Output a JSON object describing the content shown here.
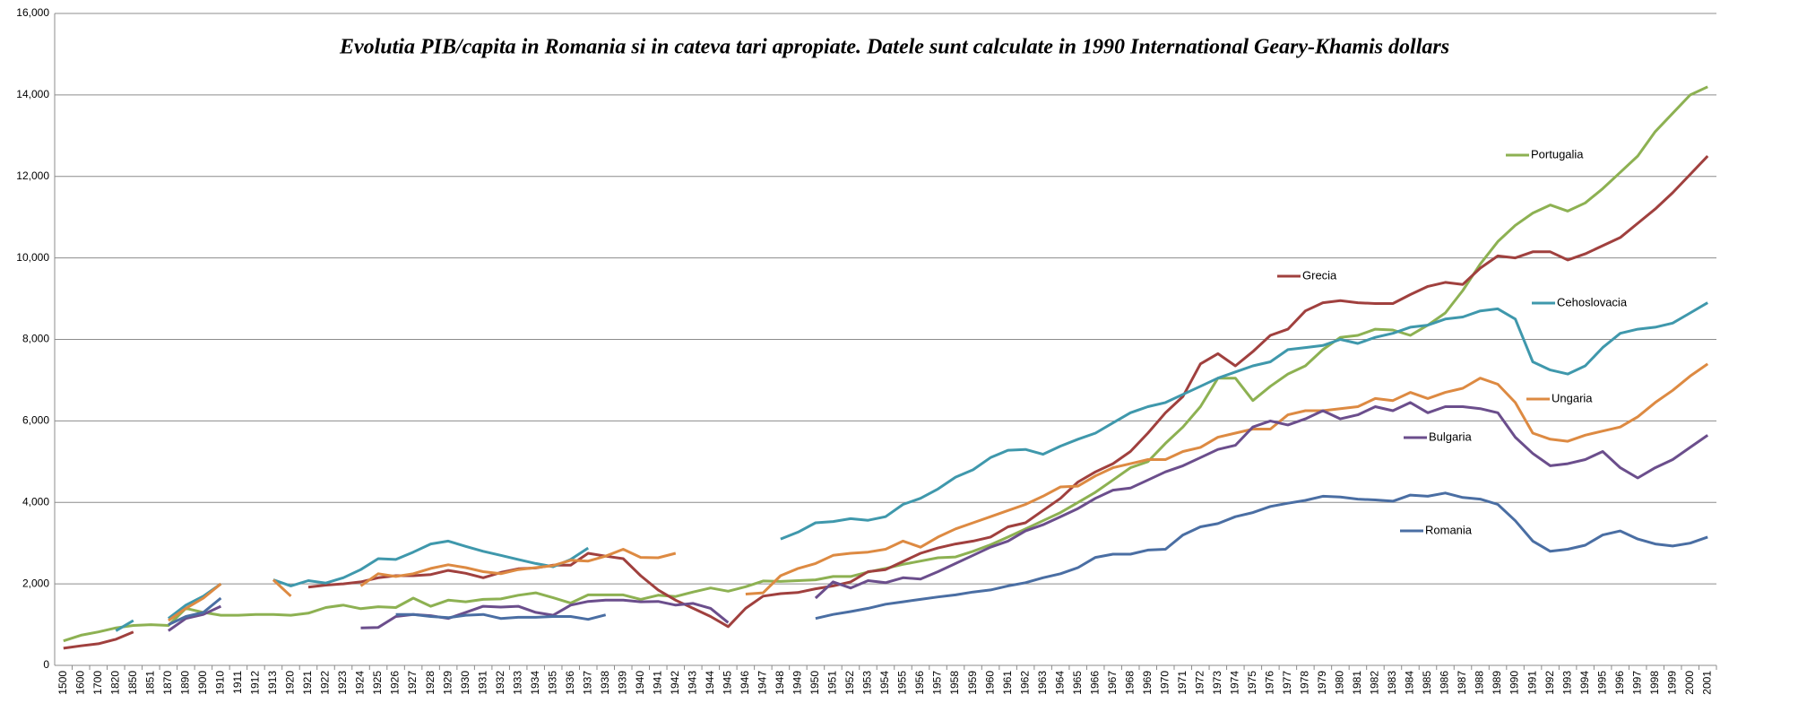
{
  "chart_data": {
    "type": "line",
    "title": "Evolutia PIB/capita in Romania si in cateva tari apropiate. Datele sunt calculate in 1990 International Geary-Khamis dollars",
    "categories": [
      "1500",
      "1600",
      "1700",
      "1820",
      "1850",
      "1851",
      "1870",
      "1890",
      "1900",
      "1910",
      "1911",
      "1912",
      "1913",
      "1920",
      "1921",
      "1922",
      "1923",
      "1924",
      "1925",
      "1926",
      "1927",
      "1928",
      "1929",
      "1930",
      "1931",
      "1932",
      "1933",
      "1934",
      "1935",
      "1936",
      "1937",
      "1938",
      "1939",
      "1940",
      "1941",
      "1942",
      "1943",
      "1944",
      "1945",
      "1946",
      "1947",
      "1948",
      "1949",
      "1950",
      "1951",
      "1952",
      "1953",
      "1954",
      "1955",
      "1956",
      "1957",
      "1958",
      "1959",
      "1960",
      "1961",
      "1962",
      "1963",
      "1964",
      "1965",
      "1966",
      "1967",
      "1968",
      "1969",
      "1970",
      "1971",
      "1972",
      "1973",
      "1974",
      "1975",
      "1976",
      "1977",
      "1978",
      "1979",
      "1980",
      "1981",
      "1982",
      "1983",
      "1984",
      "1985",
      "1986",
      "1987",
      "1988",
      "1989",
      "1990",
      "1991",
      "1992",
      "1993",
      "1994",
      "1995",
      "1996",
      "1997",
      "1998",
      "1999",
      "2000",
      "2001"
    ],
    "ylim": [
      0,
      16000
    ],
    "yticks": [
      0,
      {
        "value": 2000,
        "label": "2,000"
      },
      {
        "value": 4000,
        "label": "4,000"
      },
      {
        "value": 6000,
        "label": "6,000"
      },
      {
        "value": 8000,
        "label": "8,000"
      },
      {
        "value": 10000,
        "label": "10,000"
      },
      {
        "value": 12000,
        "label": "12,000"
      },
      {
        "value": 14000,
        "label": "14,000"
      },
      {
        "value": 16000,
        "label": "16,000"
      }
    ],
    "grid": true,
    "series": [
      {
        "name": "Portugalia",
        "color": "#8db152",
        "values": [
          600,
          740,
          820,
          920,
          980,
          1000,
          980,
          1400,
          1300,
          1230,
          1230,
          1250,
          1250,
          1230,
          1280,
          1420,
          1480,
          1390,
          1440,
          1420,
          1650,
          1450,
          1600,
          1560,
          1620,
          1630,
          1720,
          1780,
          1660,
          1530,
          1730,
          1730,
          1730,
          1620,
          1720,
          1690,
          1800,
          1900,
          1820,
          1930,
          2070,
          2060,
          2080,
          2100,
          2180,
          2180,
          2290,
          2380,
          2480,
          2560,
          2640,
          2660,
          2800,
          2960,
          3150,
          3350,
          3550,
          3750,
          4000,
          4250,
          4550,
          4850,
          5000,
          5450,
          5850,
          6350,
          7050,
          7050,
          6500,
          6850,
          7150,
          7350,
          7750,
          8050,
          8100,
          8250,
          8230,
          8100,
          8350,
          8650,
          9200,
          9850,
          10400,
          10800,
          11100,
          11300,
          11150,
          11350,
          11700,
          12100,
          12500,
          13100,
          13550,
          14000,
          14200
        ]
      },
      {
        "name": "Grecia",
        "color": "#a0403e",
        "values": [
          420,
          480,
          530,
          640,
          820,
          null,
          null,
          null,
          null,
          null,
          null,
          null,
          null,
          null,
          1920,
          1970,
          2000,
          2050,
          2150,
          2200,
          2200,
          2230,
          2330,
          2260,
          2150,
          2280,
          2370,
          2390,
          2460,
          2460,
          2750,
          2680,
          2620,
          2200,
          1850,
          1600,
          1400,
          1200,
          950,
          1400,
          1700,
          1760,
          1790,
          1880,
          1950,
          2050,
          2300,
          2350,
          2550,
          2750,
          2880,
          2980,
          3050,
          3150,
          3400,
          3500,
          3800,
          4100,
          4500,
          4750,
          4950,
          5250,
          5700,
          6200,
          6600,
          7400,
          7650,
          7350,
          7700,
          8100,
          8250,
          8700,
          8900,
          8950,
          8900,
          8880,
          8880,
          9100,
          9300,
          9400,
          9350,
          9750,
          10050,
          10000,
          10150,
          10150,
          9950,
          10100,
          10300,
          10500,
          10850,
          11200,
          11600,
          12050,
          12500
        ]
      },
      {
        "name": "Cehoslovacia",
        "color": "#3f98ac",
        "values": [
          null,
          null,
          null,
          850,
          1100,
          null,
          1150,
          1480,
          1700,
          2000,
          null,
          null,
          2100,
          1950,
          2080,
          2020,
          2150,
          2350,
          2620,
          2600,
          2780,
          2980,
          3050,
          2920,
          2800,
          2700,
          2600,
          2500,
          2420,
          2600,
          2880,
          null,
          null,
          null,
          null,
          null,
          null,
          null,
          null,
          null,
          null,
          3100,
          3270,
          3500,
          3530,
          3600,
          3560,
          3650,
          3950,
          4100,
          4330,
          4620,
          4800,
          5100,
          5280,
          5300,
          5180,
          5380,
          5550,
          5700,
          5950,
          6200,
          6350,
          6450,
          6650,
          6850,
          7050,
          7200,
          7350,
          7450,
          7750,
          7800,
          7850,
          8000,
          7900,
          8050,
          8150,
          8300,
          8350,
          8500,
          8550,
          8700,
          8750,
          8500,
          7450,
          7250,
          7150,
          7350,
          7800,
          8150,
          8250,
          8300,
          8400,
          8650,
          8900
        ]
      },
      {
        "name": "Ungaria",
        "color": "#dd8a42",
        "values": [
          null,
          null,
          null,
          null,
          null,
          null,
          1100,
          1400,
          1650,
          2000,
          null,
          null,
          2100,
          1700,
          null,
          null,
          null,
          1950,
          2250,
          2180,
          2250,
          2380,
          2470,
          2400,
          2300,
          2250,
          2350,
          2400,
          2450,
          2580,
          2560,
          2680,
          2850,
          2650,
          2640,
          2750,
          null,
          null,
          null,
          1750,
          1780,
          2200,
          2380,
          2500,
          2700,
          2750,
          2780,
          2850,
          3050,
          2900,
          3150,
          3350,
          3500,
          3650,
          3800,
          3950,
          4150,
          4380,
          4400,
          4650,
          4850,
          4950,
          5050,
          5050,
          5250,
          5350,
          5600,
          5700,
          5800,
          5800,
          6150,
          6250,
          6250,
          6300,
          6350,
          6550,
          6500,
          6700,
          6550,
          6700,
          6800,
          7050,
          6900,
          6450,
          5700,
          5550,
          5500,
          5650,
          5750,
          5850,
          6100,
          6450,
          6750,
          7100,
          7400
        ]
      },
      {
        "name": "Bulgaria",
        "color": "#6b4e8c",
        "values": [
          null,
          null,
          null,
          null,
          null,
          null,
          850,
          1150,
          1250,
          1450,
          null,
          null,
          null,
          null,
          null,
          null,
          null,
          920,
          930,
          1200,
          1250,
          1220,
          1150,
          1300,
          1450,
          1430,
          1450,
          1300,
          1230,
          1480,
          1570,
          1600,
          1600,
          1560,
          1570,
          1480,
          1520,
          1400,
          1050,
          null,
          null,
          null,
          null,
          1650,
          2050,
          1900,
          2080,
          2030,
          2150,
          2120,
          2300,
          2500,
          2700,
          2900,
          3050,
          3300,
          3450,
          3650,
          3850,
          4100,
          4300,
          4350,
          4550,
          4750,
          4900,
          5100,
          5300,
          5400,
          5850,
          6000,
          5900,
          6050,
          6250,
          6050,
          6150,
          6350,
          6250,
          6450,
          6200,
          6350,
          6350,
          6300,
          6200,
          5600,
          5200,
          4900,
          4950,
          5050,
          5250,
          4850,
          4600,
          4850,
          5050,
          5350,
          5650
        ]
      },
      {
        "name": "Romania",
        "color": "#4a6ea3",
        "values": [
          null,
          null,
          null,
          null,
          null,
          null,
          1000,
          1200,
          1300,
          1650,
          null,
          null,
          null,
          null,
          null,
          null,
          null,
          null,
          null,
          1250,
          1250,
          1200,
          1170,
          1230,
          1250,
          1150,
          1180,
          1180,
          1200,
          1200,
          1130,
          1240,
          null,
          null,
          null,
          null,
          null,
          null,
          null,
          null,
          null,
          null,
          null,
          1150,
          1250,
          1320,
          1400,
          1500,
          1560,
          1620,
          1680,
          1730,
          1800,
          1850,
          1950,
          2030,
          2150,
          2250,
          2400,
          2650,
          2730,
          2730,
          2830,
          2850,
          3200,
          3400,
          3480,
          3650,
          3750,
          3900,
          3980,
          4050,
          4150,
          4130,
          4080,
          4060,
          4030,
          4180,
          4150,
          4230,
          4120,
          4080,
          3950,
          3550,
          3050,
          2800,
          2850,
          2950,
          3200,
          3300,
          3100,
          2980,
          2930,
          3000,
          3150
        ]
      }
    ]
  }
}
